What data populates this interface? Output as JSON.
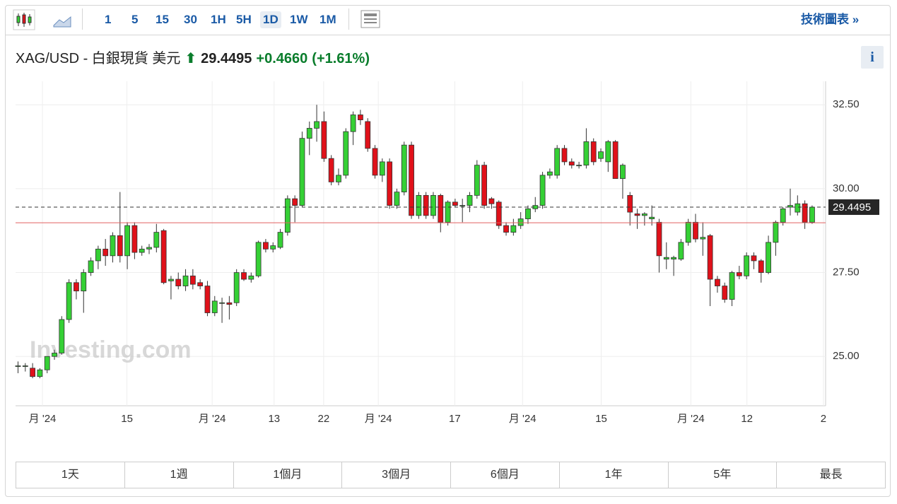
{
  "toolbar": {
    "intervals": [
      "1",
      "5",
      "15",
      "30",
      "1H",
      "5H",
      "1D",
      "1W",
      "1M"
    ],
    "selected": "1D",
    "technical": "技術圖表 »"
  },
  "header": {
    "name": "XAG/USD - 白銀現貨 美元",
    "price": "29.4495",
    "change": "+0.4660",
    "change_pct": "(+1.61%)",
    "info": "i"
  },
  "ranges": [
    "1天",
    "1週",
    "1個月",
    "3個月",
    "6個月",
    "1年",
    "5年",
    "最長"
  ],
  "chart_data": {
    "type": "candlestick",
    "watermark": "Investing.com",
    "up_color": "#35d035",
    "down_color": "#e0111a",
    "ohlc": [
      [
        24.7,
        24.85,
        24.5,
        24.72
      ],
      [
        24.7,
        24.8,
        24.55,
        24.72
      ],
      [
        24.65,
        24.8,
        24.35,
        24.4
      ],
      [
        24.4,
        24.65,
        24.35,
        24.6
      ],
      [
        24.6,
        25.0,
        24.5,
        25.0
      ],
      [
        25.0,
        25.2,
        24.9,
        25.1
      ],
      [
        25.1,
        26.2,
        25.05,
        26.1
      ],
      [
        26.1,
        27.3,
        26.0,
        27.2
      ],
      [
        27.2,
        27.3,
        26.7,
        26.95
      ],
      [
        26.95,
        27.6,
        26.3,
        27.5
      ],
      [
        27.5,
        27.95,
        27.4,
        27.85
      ],
      [
        27.85,
        28.3,
        27.6,
        28.2
      ],
      [
        28.2,
        28.5,
        27.7,
        28.0
      ],
      [
        28.0,
        28.7,
        27.8,
        28.6
      ],
      [
        28.6,
        29.9,
        27.8,
        28.0
      ],
      [
        28.0,
        29.0,
        27.6,
        28.9
      ],
      [
        28.9,
        29.0,
        27.9,
        28.1
      ],
      [
        28.1,
        28.3,
        28.0,
        28.2
      ],
      [
        28.2,
        28.35,
        28.05,
        28.25
      ],
      [
        28.25,
        28.95,
        28.1,
        28.7
      ],
      [
        28.75,
        28.8,
        27.15,
        27.2
      ],
      [
        27.25,
        27.4,
        26.7,
        27.3
      ],
      [
        27.3,
        27.5,
        27.0,
        27.1
      ],
      [
        27.1,
        27.6,
        26.95,
        27.4
      ],
      [
        27.4,
        27.6,
        27.0,
        27.15
      ],
      [
        27.2,
        27.3,
        27.0,
        27.1
      ],
      [
        27.1,
        27.25,
        26.2,
        26.3
      ],
      [
        26.3,
        26.8,
        26.2,
        26.65
      ],
      [
        26.6,
        26.75,
        26.0,
        26.6
      ],
      [
        26.6,
        26.8,
        26.1,
        26.55
      ],
      [
        26.6,
        27.6,
        26.5,
        27.5
      ],
      [
        27.5,
        27.6,
        27.25,
        27.3
      ],
      [
        27.3,
        27.5,
        27.2,
        27.4
      ],
      [
        27.4,
        28.45,
        27.35,
        28.4
      ],
      [
        28.4,
        28.5,
        28.1,
        28.2
      ],
      [
        28.2,
        28.4,
        28.1,
        28.3
      ],
      [
        28.25,
        28.8,
        28.2,
        28.7
      ],
      [
        28.7,
        29.8,
        28.6,
        29.7
      ],
      [
        29.7,
        29.8,
        29.0,
        29.5
      ],
      [
        29.5,
        31.7,
        29.45,
        31.5
      ],
      [
        31.5,
        32.0,
        31.0,
        31.8
      ],
      [
        31.8,
        32.5,
        31.4,
        32.0
      ],
      [
        32.0,
        32.3,
        30.8,
        30.9
      ],
      [
        30.9,
        31.0,
        30.1,
        30.2
      ],
      [
        30.2,
        30.6,
        30.1,
        30.4
      ],
      [
        30.4,
        31.8,
        30.3,
        31.7
      ],
      [
        31.7,
        32.3,
        31.3,
        32.2
      ],
      [
        32.2,
        32.35,
        31.9,
        32.05
      ],
      [
        32.0,
        32.1,
        31.1,
        31.2
      ],
      [
        31.2,
        31.3,
        30.3,
        30.4
      ],
      [
        30.4,
        30.9,
        30.2,
        30.8
      ],
      [
        30.8,
        30.9,
        29.4,
        29.5
      ],
      [
        29.5,
        30.0,
        29.4,
        29.9
      ],
      [
        29.9,
        31.4,
        29.8,
        31.3
      ],
      [
        31.3,
        31.4,
        29.1,
        29.2
      ],
      [
        29.2,
        29.9,
        29.1,
        29.8
      ],
      [
        29.8,
        29.9,
        29.1,
        29.2
      ],
      [
        29.2,
        29.9,
        29.1,
        29.8
      ],
      [
        29.8,
        29.85,
        28.7,
        29.0
      ],
      [
        29.0,
        29.65,
        28.9,
        29.6
      ],
      [
        29.6,
        29.7,
        29.45,
        29.5
      ],
      [
        29.5,
        29.7,
        29.0,
        29.5
      ],
      [
        29.5,
        29.9,
        29.3,
        29.8
      ],
      [
        29.8,
        30.85,
        29.7,
        30.7
      ],
      [
        30.7,
        30.8,
        29.4,
        29.5
      ],
      [
        29.7,
        29.75,
        29.4,
        29.55
      ],
      [
        29.6,
        29.65,
        28.8,
        28.9
      ],
      [
        28.9,
        29.0,
        28.6,
        28.7
      ],
      [
        28.7,
        29.1,
        28.6,
        28.9
      ],
      [
        28.9,
        29.3,
        28.8,
        29.1
      ],
      [
        29.1,
        29.5,
        28.95,
        29.4
      ],
      [
        29.4,
        29.75,
        29.3,
        29.5
      ],
      [
        29.5,
        30.5,
        29.4,
        30.4
      ],
      [
        30.4,
        30.6,
        30.3,
        30.5
      ],
      [
        30.4,
        31.3,
        30.3,
        31.2
      ],
      [
        31.2,
        31.3,
        30.7,
        30.8
      ],
      [
        30.8,
        30.9,
        30.6,
        30.7
      ],
      [
        30.7,
        30.8,
        30.6,
        30.7
      ],
      [
        30.7,
        31.8,
        30.6,
        31.4
      ],
      [
        31.4,
        31.5,
        30.7,
        30.8
      ],
      [
        30.9,
        31.2,
        30.8,
        31.1
      ],
      [
        30.8,
        31.45,
        30.5,
        31.4
      ],
      [
        31.4,
        31.45,
        30.3,
        30.3
      ],
      [
        30.3,
        30.75,
        29.7,
        30.7
      ],
      [
        29.8,
        29.9,
        28.9,
        29.3
      ],
      [
        29.25,
        29.4,
        28.8,
        29.2
      ],
      [
        29.2,
        29.3,
        28.9,
        29.25
      ],
      [
        29.1,
        29.5,
        28.9,
        29.15
      ],
      [
        29.0,
        29.1,
        27.5,
        28.0
      ],
      [
        27.9,
        28.4,
        27.6,
        27.95
      ],
      [
        27.9,
        28.0,
        27.4,
        27.95
      ],
      [
        27.9,
        28.5,
        27.85,
        28.4
      ],
      [
        28.4,
        29.1,
        28.3,
        29.0
      ],
      [
        29.0,
        29.25,
        28.4,
        28.5
      ],
      [
        28.5,
        29.0,
        28.0,
        28.55
      ],
      [
        28.6,
        28.65,
        26.5,
        27.3
      ],
      [
        27.3,
        27.4,
        26.9,
        27.1
      ],
      [
        27.1,
        27.2,
        26.6,
        26.7
      ],
      [
        26.7,
        27.55,
        26.5,
        27.5
      ],
      [
        27.5,
        27.7,
        27.3,
        27.4
      ],
      [
        27.4,
        28.1,
        27.3,
        28.0
      ],
      [
        28.0,
        28.1,
        27.6,
        27.85
      ],
      [
        27.85,
        27.9,
        27.2,
        27.5
      ],
      [
        27.5,
        28.6,
        27.45,
        28.4
      ],
      [
        28.4,
        29.05,
        28.0,
        29.0
      ],
      [
        29.0,
        29.45,
        28.9,
        29.4
      ],
      [
        29.45,
        30.0,
        29.2,
        29.5
      ],
      [
        29.3,
        29.8,
        29.2,
        29.55
      ],
      [
        29.55,
        29.65,
        28.8,
        29.0
      ],
      [
        29.0,
        29.5,
        28.95,
        29.4495
      ]
    ],
    "last_price": {
      "value": 29.4495,
      "label": "29.4495"
    },
    "prev_close": 28.9835,
    "xlim": [
      -0.29,
      110.9
    ],
    "xticks": [
      {
        "value": 3.4,
        "label": "月 '24"
      },
      {
        "value": 15.0,
        "label": "15"
      },
      {
        "value": 26.7,
        "label": "月 '24"
      },
      {
        "value": 35.2,
        "label": "13"
      },
      {
        "value": 42.0,
        "label": "22"
      },
      {
        "value": 49.5,
        "label": "月 '24"
      },
      {
        "value": 60.0,
        "label": "17"
      },
      {
        "value": 69.3,
        "label": "月 '24"
      },
      {
        "value": 80.1,
        "label": "15"
      },
      {
        "value": 92.4,
        "label": "月 '24"
      },
      {
        "value": 100.1,
        "label": "12"
      },
      {
        "value": 110.6,
        "label": "2"
      }
    ],
    "ylim": [
      23.53,
      33.2
    ],
    "yticks": [
      {
        "value": 25,
        "label": "25.00"
      },
      {
        "value": 27.5,
        "label": "27.50"
      },
      {
        "value": 30,
        "label": "30.00"
      },
      {
        "value": 32.5,
        "label": "32.50"
      }
    ],
    "grid": true
  }
}
